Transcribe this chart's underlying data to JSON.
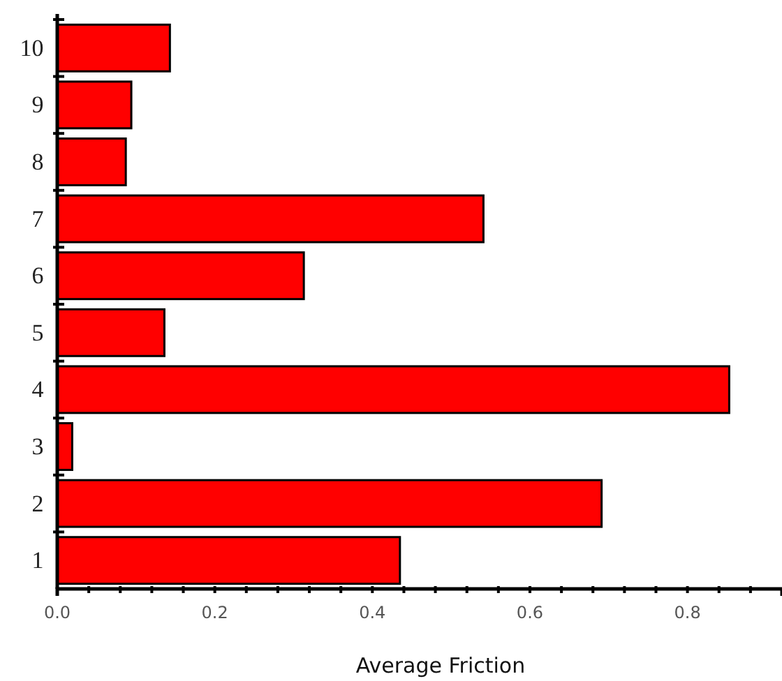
{
  "chart_data": {
    "type": "bar",
    "orientation": "horizontal",
    "xlabel": "Average Friction",
    "categories": [
      "10",
      "9",
      "8",
      "7",
      "6",
      "5",
      "4",
      "3",
      "2",
      "1"
    ],
    "values": [
      0.143,
      0.094,
      0.087,
      0.541,
      0.313,
      0.136,
      0.853,
      0.019,
      0.691,
      0.435
    ],
    "color": "#ff0000",
    "xlim": [
      0,
      0.92
    ],
    "xticks": [
      {
        "value": 0,
        "label": "0.0"
      },
      {
        "value": 0.04,
        "label": null
      },
      {
        "value": 0.08,
        "label": null
      },
      {
        "value": 0.12,
        "label": null
      },
      {
        "value": 0.16,
        "label": null
      },
      {
        "value": 0.2,
        "label": "0.2"
      },
      {
        "value": 0.24,
        "label": null
      },
      {
        "value": 0.28,
        "label": null
      },
      {
        "value": 0.32,
        "label": null
      },
      {
        "value": 0.36,
        "label": null
      },
      {
        "value": 0.4,
        "label": "0.4"
      },
      {
        "value": 0.44,
        "label": null
      },
      {
        "value": 0.48,
        "label": null
      },
      {
        "value": 0.52,
        "label": null
      },
      {
        "value": 0.56,
        "label": null
      },
      {
        "value": 0.6,
        "label": "0.6"
      },
      {
        "value": 0.64,
        "label": null
      },
      {
        "value": 0.68,
        "label": null
      },
      {
        "value": 0.72,
        "label": null
      },
      {
        "value": 0.76,
        "label": null
      },
      {
        "value": 0.8,
        "label": "0.8"
      },
      {
        "value": 0.84,
        "label": null
      },
      {
        "value": 0.88,
        "label": null
      }
    ],
    "grid": false
  }
}
